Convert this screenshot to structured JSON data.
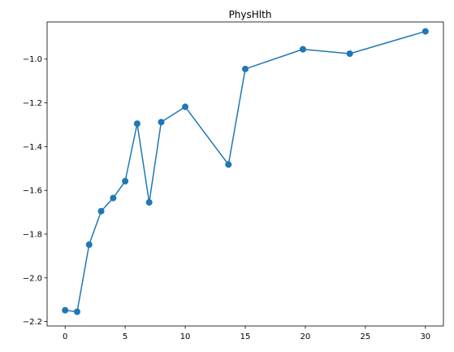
{
  "chart_data": {
    "type": "line",
    "title": "PhysHlth",
    "xlabel": "",
    "ylabel": "",
    "xlim": [
      -1.5,
      31.5
    ],
    "ylim": [
      -2.22,
      -0.83
    ],
    "x_ticks": [
      0,
      5,
      10,
      15,
      20,
      25,
      30
    ],
    "x_tick_labels": [
      "0",
      "5",
      "10",
      "15",
      "20",
      "25",
      "30"
    ],
    "y_ticks": [
      -2.2,
      -2.0,
      -1.8,
      -1.6,
      -1.4,
      -1.2,
      -1.0
    ],
    "y_tick_labels": [
      "−2.2",
      "−2.0",
      "−1.8",
      "−1.6",
      "−1.4",
      "−1.2",
      "−1.0"
    ],
    "grid": false,
    "legend": "none",
    "color": "#1f77b4",
    "series": [
      {
        "x": [
          0,
          1,
          2,
          3,
          4,
          5,
          6,
          7,
          8,
          10,
          13.6,
          15,
          19.8,
          23.7,
          30
        ],
        "y": [
          -2.148,
          -2.155,
          -1.848,
          -1.695,
          -1.635,
          -1.558,
          -1.295,
          -1.655,
          -1.288,
          -1.218,
          -1.482,
          -1.045,
          -0.955,
          -0.975,
          -0.873
        ]
      }
    ]
  }
}
